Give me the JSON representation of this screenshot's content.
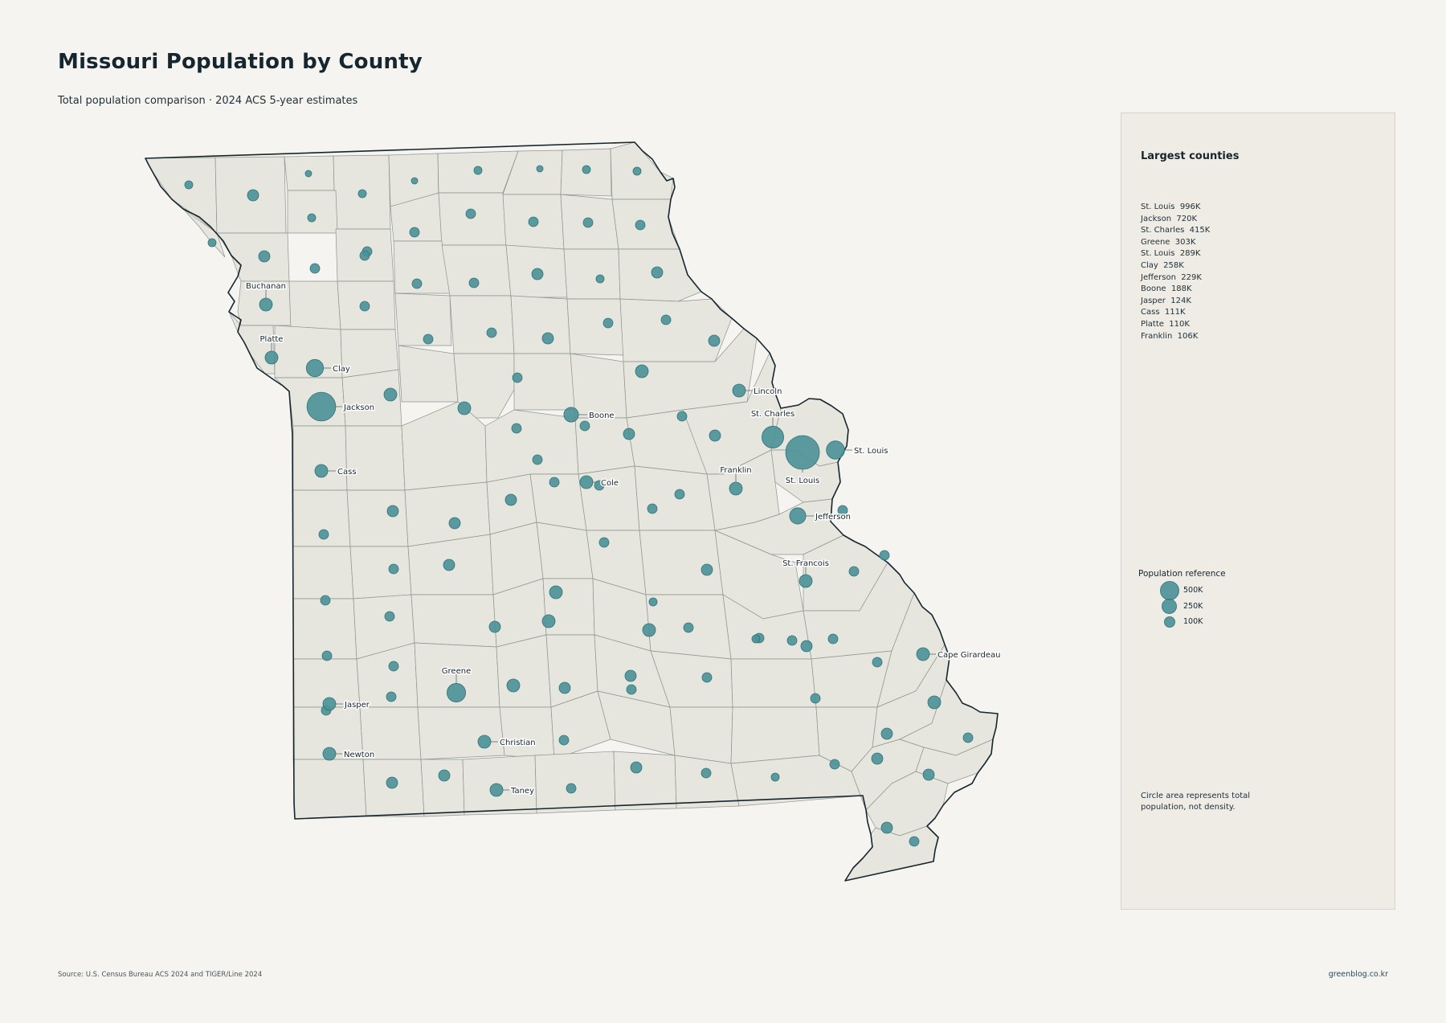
{
  "header": {
    "title": "Missouri Population by County",
    "subtitle": "Total population comparison · 2024 ACS 5-year estimates"
  },
  "legend_panel": {
    "title": "Largest counties",
    "ranking": [
      "St. Louis  996K",
      "Jackson  720K",
      "St. Charles  415K",
      "Greene  303K",
      "St. Louis  289K",
      "Clay  258K",
      "Jefferson  229K",
      "Boone  188K",
      "Jasper  124K",
      "Cass  111K",
      "Platte  110K",
      "Franklin  106K"
    ],
    "reference_title": "Population reference",
    "reference": [
      {
        "label": "500K",
        "value": 500000
      },
      {
        "label": "250K",
        "value": 250000
      },
      {
        "label": "100K",
        "value": 100000
      }
    ],
    "note": "Circle area represents total population, not density."
  },
  "footer": {
    "source": "Source: U.S. Census Bureau ACS 2024 and TIGER/Line 2024",
    "site": "greenblog.co.kr"
  },
  "style": {
    "bubble_color": "#4a9197",
    "county_fill": "#e6e6de",
    "outline_color": "#16262e",
    "background": "#f5f4f0"
  },
  "labeled_counties": [
    {
      "name": "Buchanan"
    },
    {
      "name": "Platte"
    },
    {
      "name": "Clay"
    },
    {
      "name": "Jackson"
    },
    {
      "name": "Cass"
    },
    {
      "name": "Boone"
    },
    {
      "name": "Cole"
    },
    {
      "name": "Lincoln"
    },
    {
      "name": "St. Charles"
    },
    {
      "name": "St. Louis"
    },
    {
      "name": "St. Louis"
    },
    {
      "name": "Franklin"
    },
    {
      "name": "Jefferson"
    },
    {
      "name": "St. Francois"
    },
    {
      "name": "Cape Girardeau"
    },
    {
      "name": "Greene"
    },
    {
      "name": "Jasper"
    },
    {
      "name": "Newton"
    },
    {
      "name": "Christian"
    },
    {
      "name": "Taney"
    }
  ]
}
